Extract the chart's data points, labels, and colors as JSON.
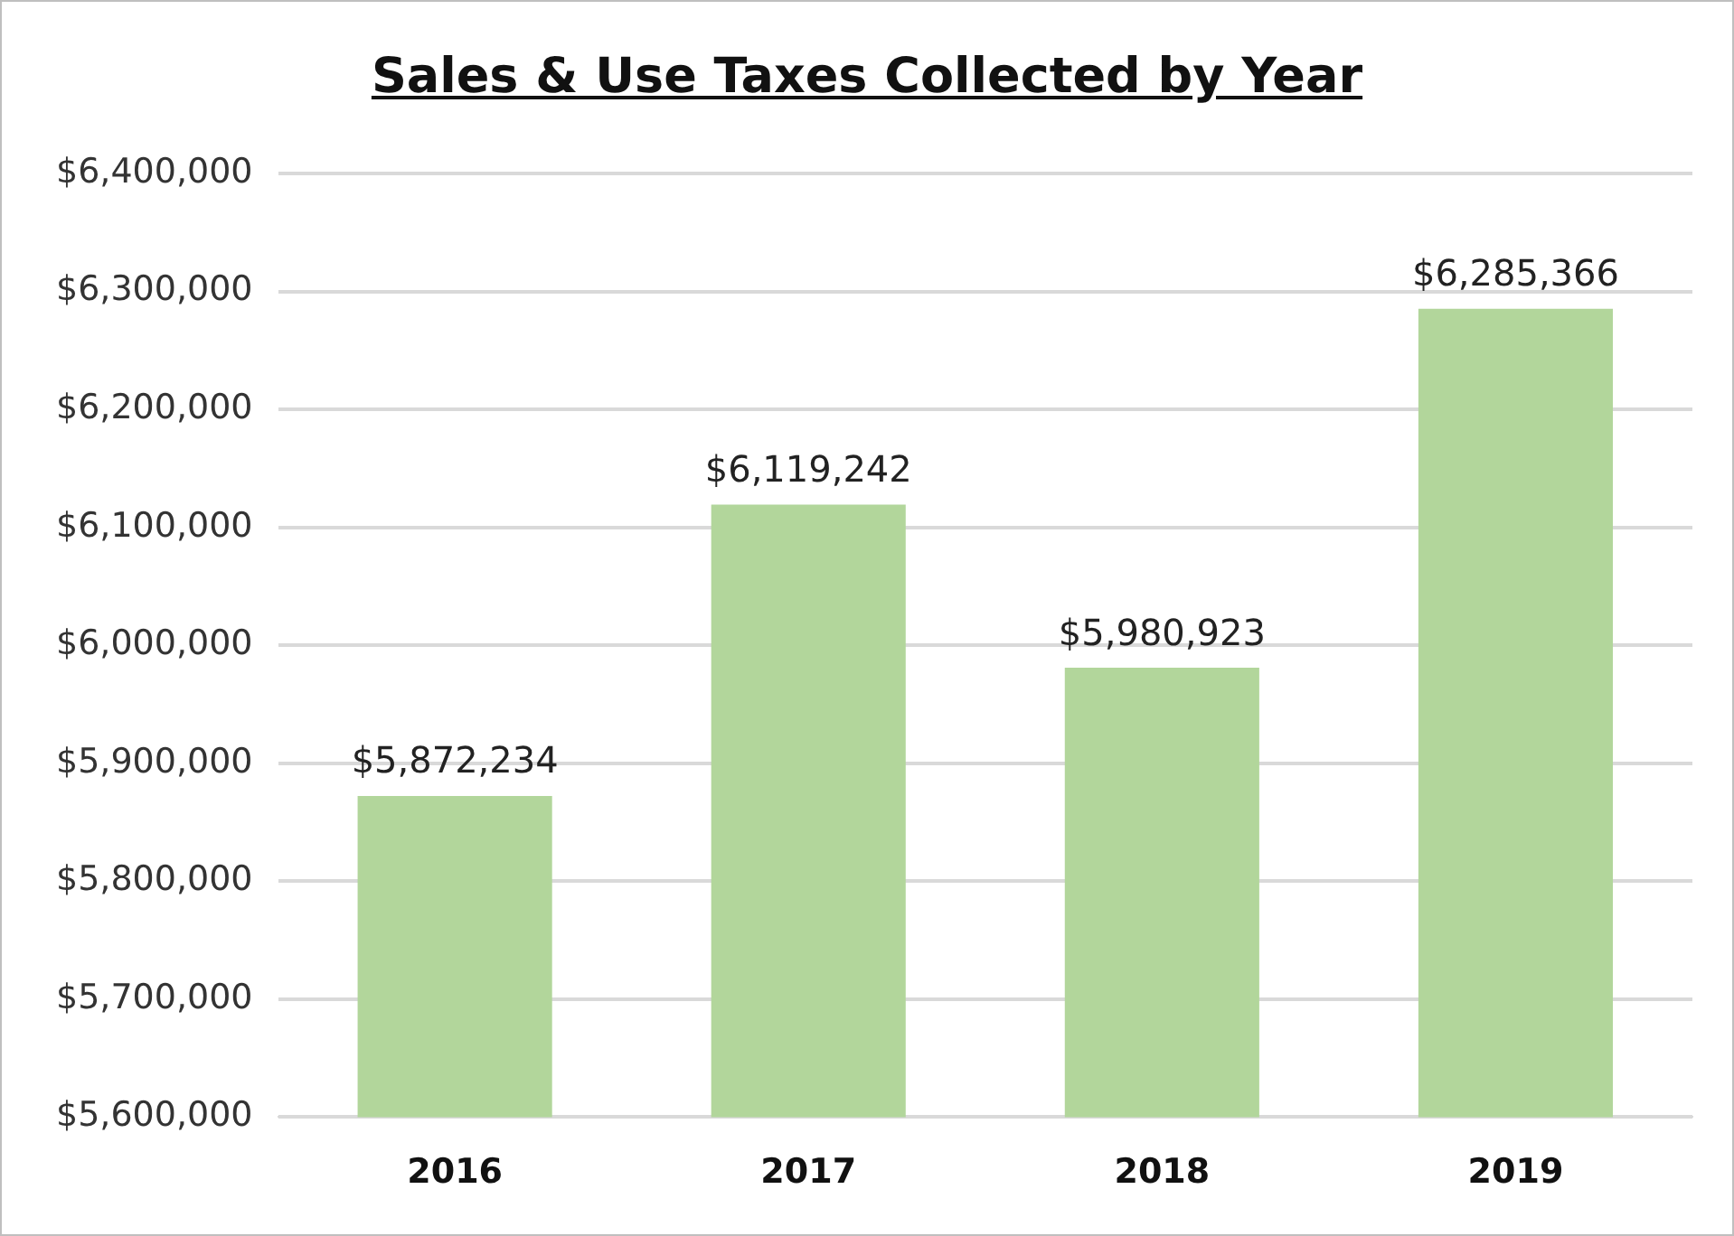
{
  "chart_data": {
    "type": "bar",
    "title": "Sales & Use Taxes Collected by Year",
    "categories": [
      "2016",
      "2017",
      "2018",
      "2019"
    ],
    "values": [
      5872234,
      6119242,
      5980923,
      6285366
    ],
    "value_labels": [
      "$5,872,234",
      "$6,119,242",
      "$5,980,923",
      "$6,285,366"
    ],
    "color": "#b2d69b",
    "ylim": [
      5600000,
      6400000
    ],
    "yticks": [
      {
        "value": 5600000,
        "label": "$5,600,000"
      },
      {
        "value": 5700000,
        "label": "$5,700,000"
      },
      {
        "value": 5800000,
        "label": "$5,800,000"
      },
      {
        "value": 5900000,
        "label": "$5,900,000"
      },
      {
        "value": 6000000,
        "label": "$6,000,000"
      },
      {
        "value": 6100000,
        "label": "$6,100,000"
      },
      {
        "value": 6200000,
        "label": "$6,200,000"
      },
      {
        "value": 6300000,
        "label": "$6,300,000"
      },
      {
        "value": 6400000,
        "label": "$6,400,000"
      }
    ],
    "grid": "y",
    "legend": false
  }
}
